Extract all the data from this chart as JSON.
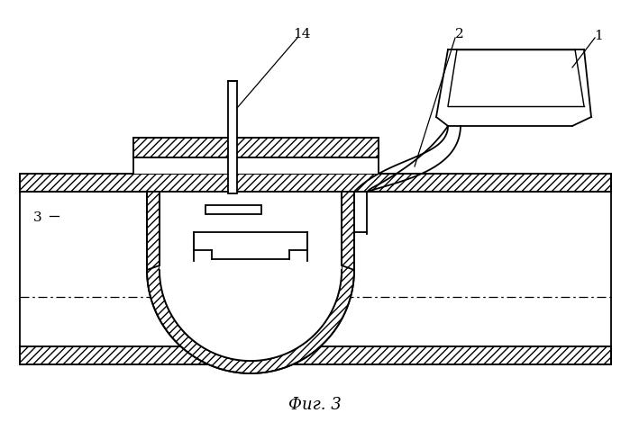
{
  "background": "#ffffff",
  "line_color": "#000000",
  "label_1": "1",
  "label_2": "2",
  "label_3": "3",
  "label_14": "14",
  "caption": "Фиг. 3",
  "fig_width": 6.99,
  "fig_height": 4.69,
  "dpi": 100,
  "lw": 1.3,
  "hatch": "////"
}
